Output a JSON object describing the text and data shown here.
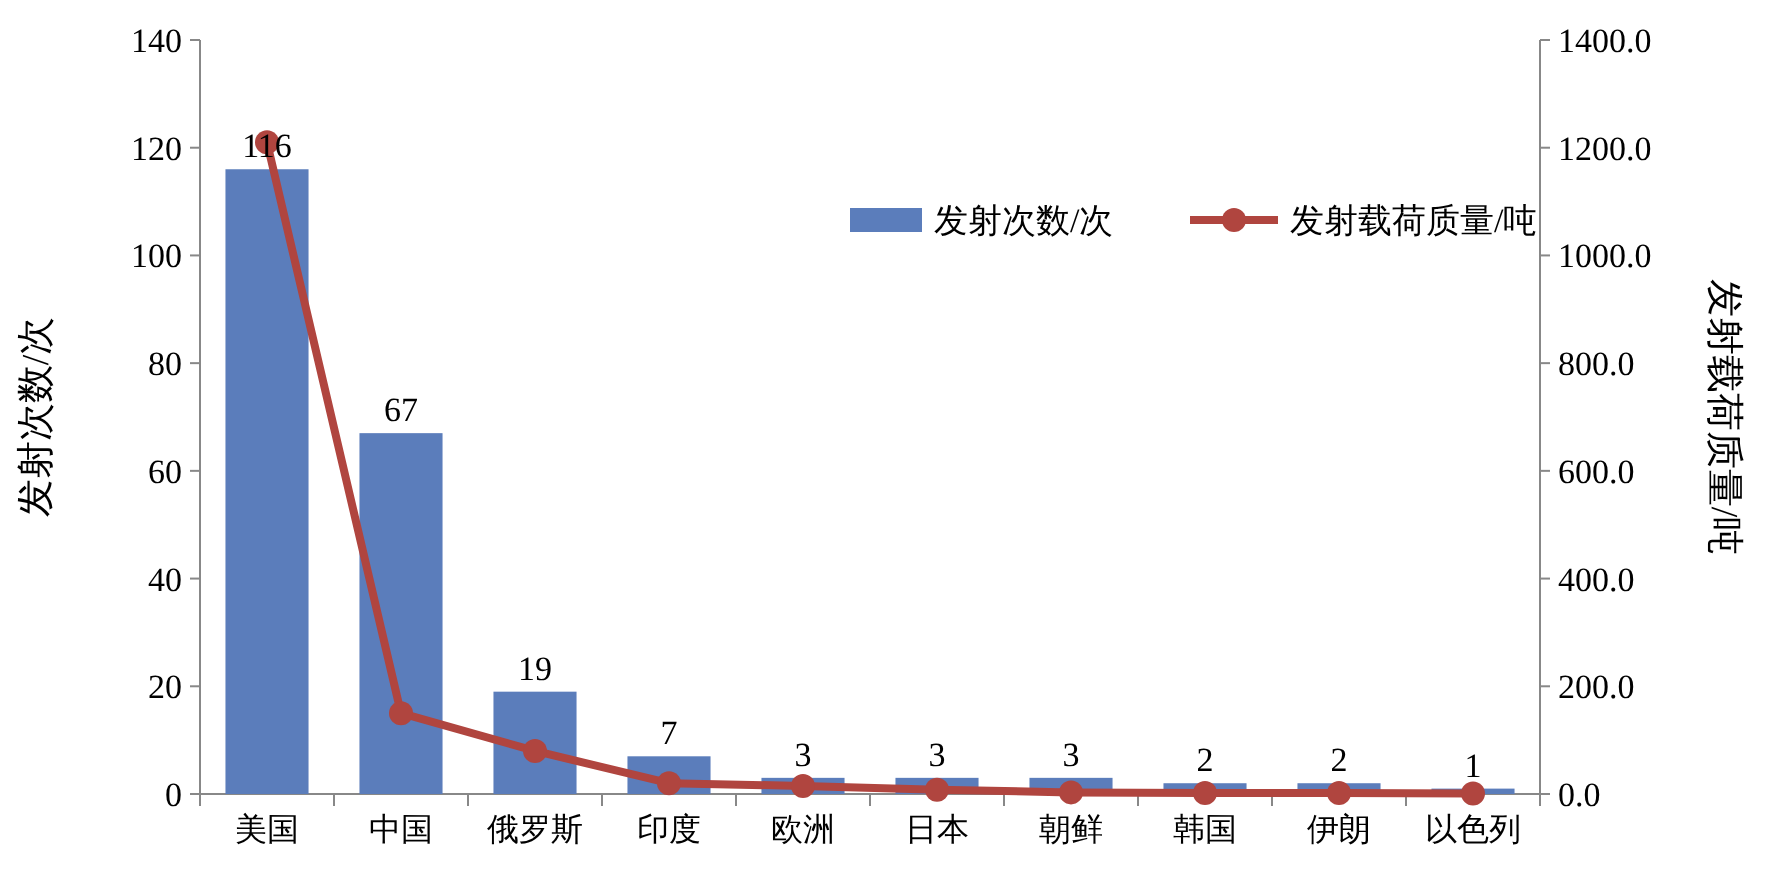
{
  "chart_data": {
    "type": "bar",
    "categories": [
      "美国",
      "中国",
      "俄罗斯",
      "印度",
      "欧洲",
      "日本",
      "朝鲜",
      "韩国",
      "伊朗",
      "以色列"
    ],
    "series": [
      {
        "name": "发射次数/次",
        "color": "#5b7dbb",
        "values": [
          116,
          67,
          19,
          7,
          3,
          3,
          3,
          2,
          2,
          1
        ],
        "value_labels": [
          "116",
          "67",
          "19",
          "7",
          "3",
          "3",
          "3",
          "2",
          "2",
          "1"
        ]
      },
      {
        "name": "发射载荷质量/吨",
        "type": "line",
        "axis": "y2",
        "color": "#b0453f",
        "marker": "circle",
        "values": [
          1210,
          150,
          80,
          20,
          15,
          8,
          3,
          2,
          2,
          1
        ]
      }
    ],
    "ylabel": "发射次数/次",
    "y2label": "发射载荷质量/吨",
    "ylim": [
      0,
      140
    ],
    "yticks": [
      0,
      20,
      40,
      60,
      80,
      100,
      120,
      140
    ],
    "y2lim": [
      0,
      1400
    ],
    "y2ticks": [
      {
        "value": 0,
        "label": "0.0"
      },
      {
        "value": 200,
        "label": "200.0"
      },
      {
        "value": 400,
        "label": "400.0"
      },
      {
        "value": 600,
        "label": "600.0"
      },
      {
        "value": 800,
        "label": "800.0"
      },
      {
        "value": 1000,
        "label": "1000.0"
      },
      {
        "value": 1200,
        "label": "1200.0"
      },
      {
        "value": 1400,
        "label": "1400.0"
      }
    ],
    "legend": "top right",
    "grid": false
  }
}
